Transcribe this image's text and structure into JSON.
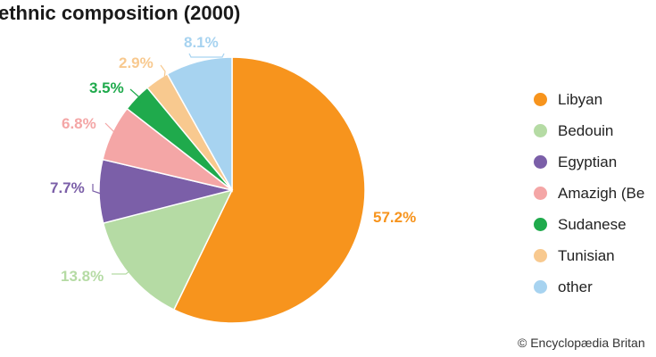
{
  "chart_data": {
    "type": "pie",
    "title": "ethnic composition (2000)",
    "slices": [
      {
        "name": "Libyan",
        "value": 57.2,
        "label": "57.2%",
        "color": "#f7941d"
      },
      {
        "name": "Bedouin",
        "value": 13.8,
        "label": "13.8%",
        "color": "#b5dba4"
      },
      {
        "name": "Egyptian",
        "value": 7.7,
        "label": "7.7%",
        "color": "#7b5fa8"
      },
      {
        "name": "Amazigh (Be",
        "value": 6.8,
        "label": "6.8%",
        "color": "#f4a6a6"
      },
      {
        "name": "Sudanese",
        "value": 3.5,
        "label": "3.5%",
        "color": "#1faa4c"
      },
      {
        "name": "Tunisian",
        "value": 2.9,
        "label": "2.9%",
        "color": "#f8c98f"
      },
      {
        "name": "other",
        "value": 8.1,
        "label": "8.1%",
        "color": "#a7d3f0"
      }
    ],
    "legend_position": "right"
  },
  "credit": "© Encyclopædia Britan"
}
